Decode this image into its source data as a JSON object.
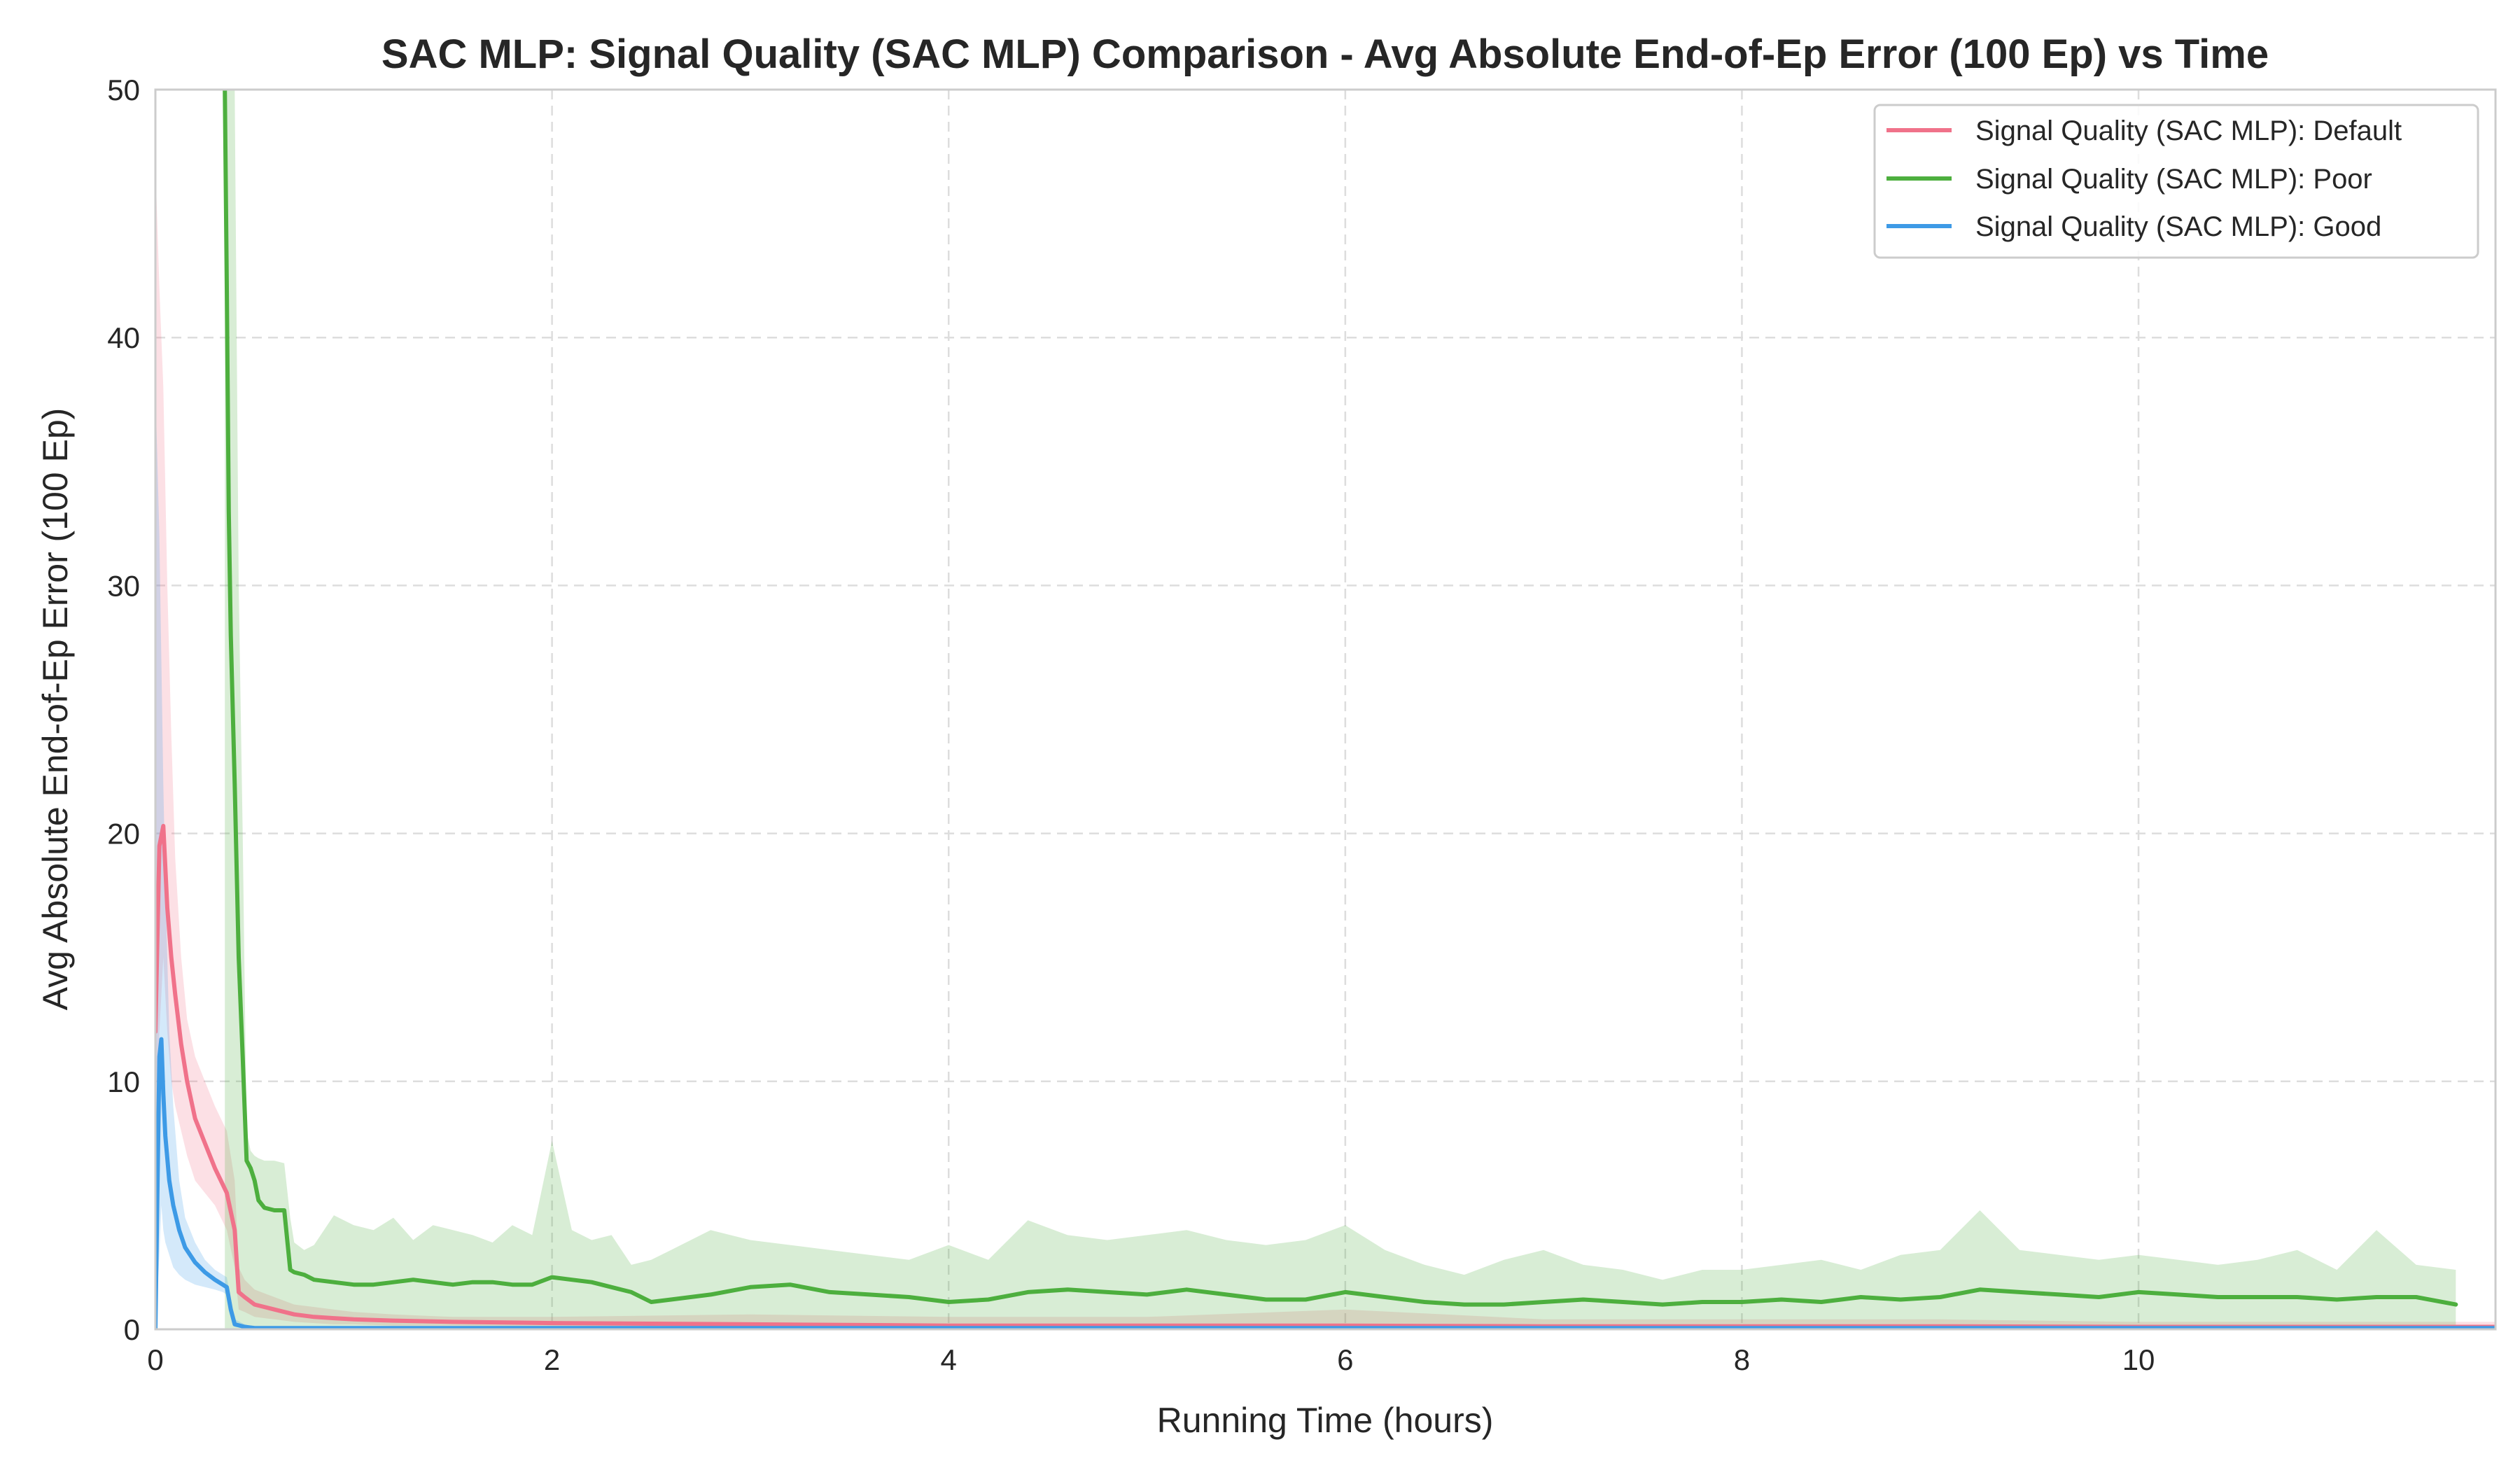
{
  "chart_data": {
    "type": "line",
    "title": "SAC MLP: Signal Quality (SAC MLP) Comparison - Avg Absolute End-of-Ep Error (100 Ep) vs Time",
    "xlabel": "Running Time (hours)",
    "ylabel": "Avg Absolute End-of-Ep Error (100 Ep)",
    "xlim": [
      0,
      11.8
    ],
    "ylim": [
      0,
      50
    ],
    "xticks": [
      0,
      2,
      4,
      6,
      8,
      10
    ],
    "yticks": [
      0,
      10,
      20,
      30,
      40,
      50
    ],
    "xtick_labels": [
      "0",
      "2",
      "4",
      "6",
      "8",
      "10"
    ],
    "ytick_labels": [
      "0",
      "10",
      "20",
      "30",
      "40",
      "50"
    ],
    "grid": true,
    "legend_position": "top-right",
    "legend": [
      "Signal Quality (SAC MLP): Default",
      "Signal Quality (SAC MLP): Poor",
      "Signal Quality (SAC MLP): Good"
    ],
    "series": [
      {
        "name": "Signal Quality (SAC MLP): Default",
        "color": "#f0728a",
        "x": [
          0.0,
          0.02,
          0.04,
          0.06,
          0.08,
          0.1,
          0.13,
          0.16,
          0.2,
          0.25,
          0.3,
          0.36,
          0.4,
          0.42,
          0.45,
          0.5,
          0.6,
          0.7,
          0.8,
          0.9,
          1.0,
          1.2,
          1.5,
          2.0,
          3.0,
          4.0,
          5.0,
          6.0,
          7.0,
          8.0,
          9.0,
          10.0,
          11.0,
          11.8
        ],
        "y": [
          12,
          19.5,
          20.3,
          17,
          15,
          13.5,
          11.5,
          10,
          8.5,
          7.5,
          6.5,
          5.5,
          4,
          1.5,
          1.3,
          1.0,
          0.8,
          0.6,
          0.5,
          0.45,
          0.4,
          0.35,
          0.3,
          0.25,
          0.2,
          0.15,
          0.15,
          0.15,
          0.12,
          0.12,
          0.12,
          0.1,
          0.1,
          0.1
        ],
        "band_low": [
          5,
          12,
          15,
          12,
          10,
          9,
          8,
          7,
          6,
          5.5,
          5,
          4,
          2.5,
          0.8,
          0.7,
          0.5,
          0.4,
          0.3,
          0.25,
          0.2,
          0.2,
          0.15,
          0.15,
          0.1,
          0.05,
          0.05,
          0.05,
          0.05,
          0.05,
          0.05,
          0.05,
          0.05,
          0.05,
          0.05
        ],
        "band_high": [
          47,
          42,
          38,
          30,
          24,
          19,
          15,
          12.5,
          11,
          10,
          9,
          8,
          6,
          2.5,
          2,
          1.6,
          1.3,
          1.0,
          0.9,
          0.8,
          0.7,
          0.6,
          0.5,
          0.5,
          0.6,
          0.5,
          0.5,
          0.8,
          0.4,
          0.4,
          0.4,
          0.3,
          0.3,
          0.3
        ]
      },
      {
        "name": "Signal Quality (SAC MLP): Poor",
        "color": "#4daf3e",
        "x": [
          0.35,
          0.36,
          0.37,
          0.38,
          0.4,
          0.42,
          0.44,
          0.46,
          0.48,
          0.5,
          0.52,
          0.55,
          0.6,
          0.65,
          0.68,
          0.7,
          0.75,
          0.8,
          0.9,
          1.0,
          1.1,
          1.2,
          1.3,
          1.4,
          1.5,
          1.6,
          1.7,
          1.8,
          1.9,
          2.0,
          2.1,
          2.2,
          2.3,
          2.4,
          2.5,
          2.6,
          2.8,
          3.0,
          3.2,
          3.4,
          3.6,
          3.8,
          4.0,
          4.2,
          4.4,
          4.6,
          4.8,
          5.0,
          5.2,
          5.4,
          5.6,
          5.8,
          6.0,
          6.2,
          6.4,
          6.6,
          6.8,
          7.0,
          7.2,
          7.4,
          7.6,
          7.8,
          8.0,
          8.2,
          8.4,
          8.6,
          8.8,
          9.0,
          9.2,
          9.4,
          9.6,
          9.8,
          10.0,
          10.2,
          10.4,
          10.6,
          10.8,
          11.0,
          11.2,
          11.4,
          11.6
        ],
        "y": [
          50,
          42,
          33,
          28,
          22,
          15,
          11,
          6.8,
          6.5,
          6.0,
          5.2,
          4.9,
          4.8,
          4.8,
          2.4,
          2.3,
          2.2,
          2.0,
          1.9,
          1.8,
          1.8,
          1.9,
          2.0,
          1.9,
          1.8,
          1.9,
          1.9,
          1.8,
          1.8,
          2.1,
          2.0,
          1.9,
          1.7,
          1.5,
          1.1,
          1.2,
          1.4,
          1.7,
          1.8,
          1.5,
          1.4,
          1.3,
          1.1,
          1.2,
          1.5,
          1.6,
          1.5,
          1.4,
          1.6,
          1.4,
          1.2,
          1.2,
          1.5,
          1.3,
          1.1,
          1.0,
          1.0,
          1.1,
          1.2,
          1.1,
          1.0,
          1.1,
          1.1,
          1.2,
          1.1,
          1.3,
          1.2,
          1.3,
          1.6,
          1.5,
          1.4,
          1.3,
          1.5,
          1.4,
          1.3,
          1.3,
          1.3,
          1.2,
          1.3,
          1.3,
          1.0
        ],
        "band_low": [
          0,
          0,
          0,
          0,
          0,
          0,
          0,
          0,
          0,
          0,
          0,
          0,
          0,
          0,
          0,
          0,
          0,
          0,
          0,
          0,
          0,
          0,
          0,
          0,
          0,
          0,
          0,
          0,
          0,
          0,
          0,
          0,
          0,
          0,
          0,
          0,
          0,
          0,
          0,
          0,
          0,
          0,
          0,
          0,
          0,
          0,
          0,
          0,
          0,
          0,
          0,
          0,
          0,
          0,
          0,
          0,
          0,
          0,
          0,
          0,
          0,
          0,
          0,
          0,
          0,
          0,
          0,
          0,
          0,
          0,
          0,
          0,
          0,
          0,
          0,
          0,
          0,
          0,
          0,
          0,
          0
        ],
        "band_high": [
          50,
          50,
          50,
          50,
          50,
          30,
          20,
          8,
          7.2,
          7.0,
          6.9,
          6.8,
          6.8,
          6.7,
          4.5,
          3.5,
          3.2,
          3.4,
          4.6,
          4.2,
          4.0,
          4.5,
          3.6,
          4.2,
          4.0,
          3.8,
          3.5,
          4.2,
          3.8,
          7.6,
          4.0,
          3.6,
          3.8,
          2.6,
          2.8,
          3.2,
          4.0,
          3.6,
          3.4,
          3.2,
          3.0,
          2.8,
          3.4,
          2.8,
          4.4,
          3.8,
          3.6,
          3.8,
          4.0,
          3.6,
          3.4,
          3.6,
          4.2,
          3.2,
          2.6,
          2.2,
          2.8,
          3.2,
          2.6,
          2.4,
          2.0,
          2.4,
          2.4,
          2.6,
          2.8,
          2.4,
          3.0,
          3.2,
          4.8,
          3.2,
          3.0,
          2.8,
          3.0,
          2.8,
          2.6,
          2.8,
          3.2,
          2.4,
          4.0,
          2.6,
          2.4
        ]
      },
      {
        "name": "Signal Quality (SAC MLP): Good",
        "color": "#3d9ae6",
        "x": [
          0.0,
          0.02,
          0.03,
          0.04,
          0.05,
          0.07,
          0.09,
          0.12,
          0.15,
          0.2,
          0.25,
          0.3,
          0.34,
          0.36,
          0.38,
          0.4,
          0.45,
          0.5,
          1.0,
          2.0,
          3.0,
          4.0,
          5.0,
          6.0,
          7.0,
          8.0,
          9.0,
          10.0,
          11.0,
          11.8
        ],
        "y": [
          0,
          11,
          11.7,
          9.5,
          7.8,
          6,
          5,
          4,
          3.3,
          2.7,
          2.3,
          2.0,
          1.8,
          1.7,
          0.8,
          0.2,
          0.1,
          0.05,
          0.05,
          0.05,
          0.05,
          0.05,
          0.05,
          0.05,
          0.05,
          0.05,
          0.05,
          0.05,
          0.05,
          0.05
        ],
        "band_low": [
          0,
          3,
          5,
          4,
          3.5,
          3,
          2.5,
          2.2,
          2.0,
          1.8,
          1.7,
          1.6,
          1.5,
          1.4,
          0.5,
          0.1,
          0.05,
          0,
          0,
          0,
          0,
          0,
          0,
          0,
          0,
          0,
          0,
          0,
          0,
          0
        ],
        "band_high": [
          38,
          32,
          27,
          22,
          18,
          12,
          9,
          6,
          4.5,
          3.5,
          2.8,
          2.4,
          2.2,
          2.1,
          1.2,
          0.4,
          0.2,
          0.1,
          0.1,
          0.1,
          0.1,
          0.1,
          0.1,
          0.1,
          0.1,
          0.1,
          0.1,
          0.1,
          0.1,
          0.1
        ]
      }
    ]
  }
}
